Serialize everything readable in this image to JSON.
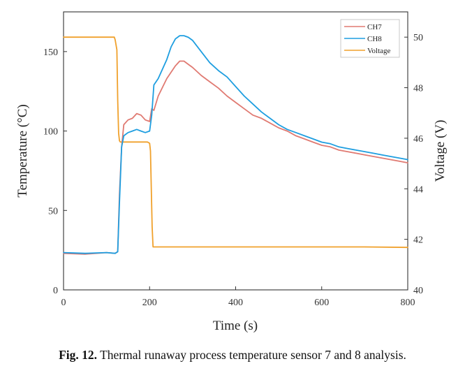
{
  "chart_data": {
    "type": "line",
    "xlabel": "Time (s)",
    "ylabel": "Temperature (°C)",
    "y2label": "Voltage (V)",
    "xlim": [
      0,
      800
    ],
    "ylim": [
      0,
      175
    ],
    "y2lim": [
      40,
      51
    ],
    "xticks": [
      "0",
      "200",
      "400",
      "600",
      "800"
    ],
    "yticks": [
      "0",
      "50",
      "100",
      "150"
    ],
    "y2ticks": [
      "40",
      "42",
      "44",
      "46",
      "48",
      "50"
    ],
    "legend_position": "top-right",
    "grid": false,
    "series": [
      {
        "name": "CH7",
        "axis": "left",
        "color": "#e07a72",
        "x": [
          0,
          50,
          100,
          120,
          126,
          130,
          135,
          140,
          150,
          160,
          170,
          180,
          190,
          200,
          205,
          210,
          220,
          240,
          260,
          270,
          280,
          290,
          300,
          320,
          340,
          360,
          380,
          400,
          420,
          440,
          460,
          480,
          500,
          520,
          540,
          560,
          580,
          600,
          620,
          640,
          660,
          680,
          700,
          720,
          740,
          760,
          780,
          800
        ],
        "values": [
          23,
          22.5,
          23.5,
          23,
          24,
          60,
          90,
          104,
          107,
          108,
          111,
          110,
          107,
          106,
          114,
          113,
          122,
          133,
          141,
          144,
          144,
          142,
          140,
          135,
          131,
          127,
          122,
          118,
          114,
          110,
          108,
          105,
          102,
          100,
          97,
          95,
          93,
          91,
          90,
          88,
          87,
          86,
          85,
          84,
          83,
          82,
          81,
          80
        ]
      },
      {
        "name": "CH8",
        "axis": "left",
        "color": "#1e9ee0",
        "x": [
          0,
          50,
          100,
          120,
          126,
          130,
          135,
          140,
          150,
          160,
          170,
          180,
          190,
          200,
          205,
          210,
          220,
          240,
          250,
          260,
          270,
          280,
          290,
          300,
          320,
          340,
          360,
          380,
          400,
          420,
          440,
          460,
          480,
          500,
          520,
          540,
          560,
          580,
          600,
          620,
          640,
          660,
          680,
          700,
          720,
          740,
          760,
          780,
          800
        ],
        "values": [
          23.5,
          23,
          23.5,
          23,
          24,
          55,
          90,
          97,
          99,
          100,
          101,
          100,
          99,
          100,
          110,
          129,
          133,
          145,
          153,
          158,
          160,
          160,
          159,
          157,
          150,
          143,
          138,
          134,
          128,
          122,
          117,
          112,
          108,
          104,
          101,
          99,
          97,
          95,
          93,
          92,
          90,
          89,
          88,
          87,
          86,
          85,
          84,
          83,
          82
        ]
      },
      {
        "name": "Voltage",
        "axis": "right",
        "color": "#f0a12c",
        "x": [
          0,
          50,
          100,
          118,
          120,
          124,
          126,
          128,
          130,
          132,
          135,
          140,
          160,
          180,
          195,
          200,
          202,
          204,
          206,
          208,
          210,
          220,
          300,
          400,
          500,
          600,
          700,
          800
        ],
        "values": [
          50,
          50,
          50,
          50,
          49.9,
          49.5,
          47.5,
          46.2,
          45.9,
          45.85,
          45.85,
          45.85,
          45.85,
          45.85,
          45.85,
          45.8,
          45.5,
          44,
          42.5,
          41.7,
          41.7,
          41.7,
          41.7,
          41.7,
          41.7,
          41.7,
          41.7,
          41.68
        ]
      }
    ]
  },
  "caption": {
    "lead": "Fig. 12.",
    "text": " Thermal runaway process temperature sensor 7 and 8 analysis."
  }
}
